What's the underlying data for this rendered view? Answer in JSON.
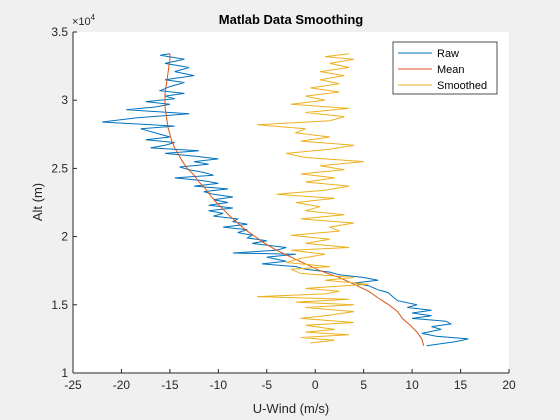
{
  "chart_data": {
    "type": "line",
    "title": "Matlab Data Smoothing",
    "xlabel": "U-Wind (m/s)",
    "ylabel": "Alt (m)",
    "xlim": [
      -25,
      20
    ],
    "ylim": [
      10000,
      35000
    ],
    "x_ticks": [
      "-25",
      "-20",
      "-15",
      "-10",
      "-5",
      "0",
      "5",
      "10",
      "15",
      "20"
    ],
    "y_ticks": [
      "1",
      "1.5",
      "2",
      "2.5",
      "3",
      "3.5"
    ],
    "y_exponent": "×10",
    "y_exponent_power": "4",
    "grid": false,
    "legend_position": "top-right",
    "series": [
      {
        "name": "Raw",
        "color": "#0072BD",
        "points": [
          [
            11.5,
            12000
          ],
          [
            14.5,
            12300
          ],
          [
            15.8,
            12500
          ],
          [
            12.5,
            12700
          ],
          [
            11,
            12900
          ],
          [
            13,
            13200
          ],
          [
            12,
            13400
          ],
          [
            14,
            13600
          ],
          [
            13.5,
            13800
          ],
          [
            10,
            14000
          ],
          [
            12,
            14200
          ],
          [
            10,
            14400
          ],
          [
            12,
            14600
          ],
          [
            9.5,
            14800
          ],
          [
            10.5,
            15000
          ],
          [
            8.5,
            15300
          ],
          [
            8,
            15600
          ],
          [
            7.5,
            15900
          ],
          [
            6.5,
            16100
          ],
          [
            5.5,
            16400
          ],
          [
            4,
            16600
          ],
          [
            6.5,
            16800
          ],
          [
            5,
            17000
          ],
          [
            2.5,
            17200
          ],
          [
            1.5,
            17400
          ],
          [
            -1,
            17600
          ],
          [
            -2,
            17800
          ],
          [
            -5.5,
            18000
          ],
          [
            -3,
            18200
          ],
          [
            -5,
            18500
          ],
          [
            -2,
            18700
          ],
          [
            -8.5,
            18800
          ],
          [
            -4,
            19000
          ],
          [
            -3,
            19200
          ],
          [
            -6.5,
            19500
          ],
          [
            -5,
            19700
          ],
          [
            -7,
            19900
          ],
          [
            -6.5,
            20100
          ],
          [
            -8,
            20300
          ],
          [
            -7,
            20500
          ],
          [
            -9.5,
            20700
          ],
          [
            -7,
            20900
          ],
          [
            -8.5,
            21100
          ],
          [
            -8,
            21300
          ],
          [
            -10.5,
            21500
          ],
          [
            -9.5,
            21700
          ],
          [
            -11,
            21900
          ],
          [
            -8.5,
            22100
          ],
          [
            -11,
            22300
          ],
          [
            -9,
            22500
          ],
          [
            -10.5,
            22700
          ],
          [
            -8.5,
            22900
          ],
          [
            -10.5,
            23100
          ],
          [
            -11.5,
            23300
          ],
          [
            -9,
            23500
          ],
          [
            -12.5,
            23700
          ],
          [
            -10,
            23900
          ],
          [
            -11.5,
            24100
          ],
          [
            -14.5,
            24300
          ],
          [
            -10.5,
            24500
          ],
          [
            -11.5,
            24700
          ],
          [
            -13,
            24900
          ],
          [
            -14,
            25100
          ],
          [
            -11,
            25300
          ],
          [
            -12.5,
            25500
          ],
          [
            -10,
            25700
          ],
          [
            -12.5,
            25900
          ],
          [
            -15.5,
            26100
          ],
          [
            -12,
            26300
          ],
          [
            -17,
            26500
          ],
          [
            -15.5,
            26700
          ],
          [
            -14.5,
            26900
          ],
          [
            -17.5,
            27100
          ],
          [
            -15,
            27300
          ],
          [
            -16.5,
            27600
          ],
          [
            -18,
            27900
          ],
          [
            -14.5,
            28100
          ],
          [
            -22,
            28400
          ],
          [
            -18.5,
            28700
          ],
          [
            -13,
            29000
          ],
          [
            -19.5,
            29300
          ],
          [
            -16.5,
            29500
          ],
          [
            -15,
            29700
          ],
          [
            -17.5,
            29900
          ],
          [
            -14.5,
            30100
          ],
          [
            -15.5,
            30300
          ],
          [
            -13.5,
            30500
          ],
          [
            -16,
            30700
          ],
          [
            -15,
            31000
          ],
          [
            -13.5,
            31300
          ],
          [
            -15.5,
            31500
          ],
          [
            -12.5,
            31800
          ],
          [
            -14.5,
            32100
          ],
          [
            -13,
            32400
          ],
          [
            -15.5,
            32700
          ],
          [
            -13.5,
            33000
          ],
          [
            -16,
            33300
          ],
          [
            -15,
            33400
          ]
        ]
      },
      {
        "name": "Mean",
        "color": "#D95319",
        "points": [
          [
            11.2,
            12000
          ],
          [
            11,
            12500
          ],
          [
            10.5,
            13000
          ],
          [
            9.8,
            13500
          ],
          [
            9,
            14000
          ],
          [
            8.5,
            14500
          ],
          [
            7.6,
            15000
          ],
          [
            6.5,
            15500
          ],
          [
            5.5,
            16000
          ],
          [
            4,
            16500
          ],
          [
            2.5,
            17000
          ],
          [
            0.5,
            17500
          ],
          [
            -1,
            18000
          ],
          [
            -2.5,
            18500
          ],
          [
            -4,
            19000
          ],
          [
            -5.2,
            19500
          ],
          [
            -6.2,
            20000
          ],
          [
            -7.2,
            20500
          ],
          [
            -8,
            21000
          ],
          [
            -8.8,
            21500
          ],
          [
            -9.5,
            22000
          ],
          [
            -10.2,
            22500
          ],
          [
            -10.8,
            23000
          ],
          [
            -11.3,
            23500
          ],
          [
            -12,
            24000
          ],
          [
            -12.5,
            24500
          ],
          [
            -13.2,
            25000
          ],
          [
            -13.7,
            25500
          ],
          [
            -14.1,
            26000
          ],
          [
            -14.5,
            26500
          ],
          [
            -14.8,
            27000
          ],
          [
            -15,
            27500
          ],
          [
            -15.2,
            28000
          ],
          [
            -15.3,
            28500
          ],
          [
            -15.4,
            29000
          ],
          [
            -15.5,
            29500
          ],
          [
            -15.5,
            30000
          ],
          [
            -15.5,
            30500
          ],
          [
            -15.4,
            31000
          ],
          [
            -15.3,
            31500
          ],
          [
            -15.2,
            32000
          ],
          [
            -15.1,
            32500
          ],
          [
            -15,
            33000
          ],
          [
            -15,
            33400
          ]
        ]
      },
      {
        "name": "Smoothed",
        "color": "#EDB120",
        "points": [
          [
            -0.5,
            12200
          ],
          [
            2,
            12400
          ],
          [
            -1.5,
            12600
          ],
          [
            3.5,
            12800
          ],
          [
            -1,
            13000
          ],
          [
            2,
            13200
          ],
          [
            -1,
            13500
          ],
          [
            4,
            13700
          ],
          [
            -1.5,
            14000
          ],
          [
            1,
            14200
          ],
          [
            4,
            14500
          ],
          [
            -1,
            14800
          ],
          [
            4,
            15000
          ],
          [
            -2,
            15200
          ],
          [
            3.5,
            15400
          ],
          [
            -6,
            15600
          ],
          [
            1,
            15800
          ],
          [
            2.5,
            16000
          ],
          [
            -1,
            16200
          ],
          [
            5.5,
            16500
          ],
          [
            1,
            16800
          ],
          [
            4,
            17000
          ],
          [
            -1.5,
            17300
          ],
          [
            -2.5,
            17600
          ],
          [
            1.5,
            17800
          ],
          [
            -3,
            18100
          ],
          [
            -1.5,
            18400
          ],
          [
            1,
            18700
          ],
          [
            -2.5,
            19000
          ],
          [
            3.5,
            19200
          ],
          [
            -1,
            19500
          ],
          [
            1.5,
            19800
          ],
          [
            -2.5,
            20100
          ],
          [
            2.5,
            20400
          ],
          [
            1.5,
            20700
          ],
          [
            4,
            21000
          ],
          [
            -1.5,
            21300
          ],
          [
            3,
            21600
          ],
          [
            -1,
            21900
          ],
          [
            0.5,
            22200
          ],
          [
            -2,
            22500
          ],
          [
            2,
            22800
          ],
          [
            -4,
            23100
          ],
          [
            1,
            23400
          ],
          [
            3.5,
            23700
          ],
          [
            -1,
            24000
          ],
          [
            2,
            24300
          ],
          [
            -1.5,
            24600
          ],
          [
            3,
            24900
          ],
          [
            0.5,
            25200
          ],
          [
            5,
            25500
          ],
          [
            -1,
            25800
          ],
          [
            -3,
            26100
          ],
          [
            1.5,
            26400
          ],
          [
            4,
            26700
          ],
          [
            -1.5,
            27000
          ],
          [
            1.5,
            27300
          ],
          [
            -2,
            27600
          ],
          [
            -1,
            27900
          ],
          [
            -6,
            28200
          ],
          [
            1.5,
            28500
          ],
          [
            3,
            28800
          ],
          [
            -1,
            29100
          ],
          [
            3.5,
            29400
          ],
          [
            -2.5,
            29700
          ],
          [
            1,
            30000
          ],
          [
            -1,
            30300
          ],
          [
            2.5,
            30600
          ],
          [
            -0.5,
            30900
          ],
          [
            2.5,
            31200
          ],
          [
            0.5,
            31500
          ],
          [
            3,
            31800
          ],
          [
            0.5,
            32100
          ],
          [
            3.5,
            32400
          ],
          [
            1.5,
            32700
          ],
          [
            4,
            33000
          ],
          [
            1,
            33200
          ],
          [
            3.5,
            33400
          ]
        ]
      }
    ]
  }
}
